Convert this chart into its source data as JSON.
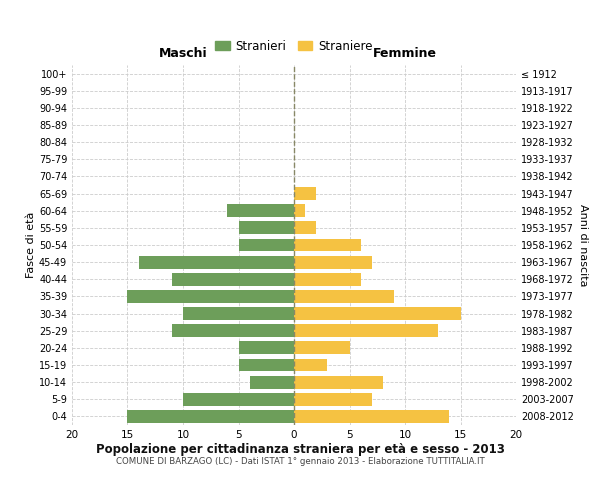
{
  "age_groups": [
    "100+",
    "95-99",
    "90-94",
    "85-89",
    "80-84",
    "75-79",
    "70-74",
    "65-69",
    "60-64",
    "55-59",
    "50-54",
    "45-49",
    "40-44",
    "35-39",
    "30-34",
    "25-29",
    "20-24",
    "15-19",
    "10-14",
    "5-9",
    "0-4"
  ],
  "birth_years": [
    "≤ 1912",
    "1913-1917",
    "1918-1922",
    "1923-1927",
    "1928-1932",
    "1933-1937",
    "1938-1942",
    "1943-1947",
    "1948-1952",
    "1953-1957",
    "1958-1962",
    "1963-1967",
    "1968-1972",
    "1973-1977",
    "1978-1982",
    "1983-1987",
    "1988-1992",
    "1993-1997",
    "1998-2002",
    "2003-2007",
    "2008-2012"
  ],
  "maschi": [
    0,
    0,
    0,
    0,
    0,
    0,
    0,
    0,
    6,
    5,
    5,
    14,
    11,
    15,
    10,
    11,
    5,
    5,
    4,
    10,
    15
  ],
  "femmine": [
    0,
    0,
    0,
    0,
    0,
    0,
    0,
    2,
    1,
    2,
    6,
    7,
    6,
    9,
    15,
    13,
    5,
    3,
    8,
    7,
    14
  ],
  "maschi_color": "#6d9e5a",
  "femmine_color": "#f5c242",
  "background_color": "#ffffff",
  "grid_color": "#cccccc",
  "title": "Popolazione per cittadinanza straniera per età e sesso - 2013",
  "subtitle": "COMUNE DI BARZAGO (LC) - Dati ISTAT 1° gennaio 2013 - Elaborazione TUTTITALIA.IT",
  "xlabel_left": "Maschi",
  "xlabel_right": "Femmine",
  "ylabel_left": "Fasce di età",
  "ylabel_right": "Anni di nascita",
  "legend_maschi": "Stranieri",
  "legend_femmine": "Straniere",
  "xlim": 20,
  "bar_height": 0.75
}
